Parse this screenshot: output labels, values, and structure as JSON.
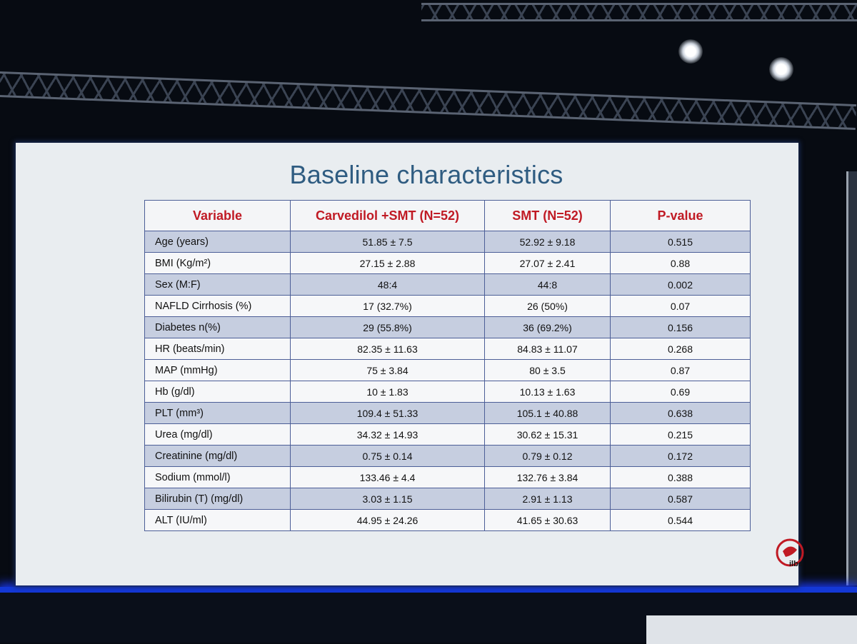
{
  "slide": {
    "title": "Baseline characteristics",
    "logo_text": "ilbs"
  },
  "table": {
    "headers": [
      "Variable",
      "Carvedilol +SMT (N=52)",
      "SMT (N=52)",
      "P-value"
    ],
    "rows": [
      {
        "variable": "Age (years)",
        "carvedilol_smt": "51.85 ± 7.5",
        "smt": "52.92 ± 9.18",
        "p_value": "0.515"
      },
      {
        "variable": "BMI (Kg/m²)",
        "carvedilol_smt": "27.15 ± 2.88",
        "smt": "27.07 ± 2.41",
        "p_value": "0.88"
      },
      {
        "variable": "Sex (M:F)",
        "carvedilol_smt": "48:4",
        "smt": "44:8",
        "p_value": "0.002"
      },
      {
        "variable": "NAFLD Cirrhosis (%)",
        "carvedilol_smt": "17 (32.7%)",
        "smt": "26 (50%)",
        "p_value": "0.07"
      },
      {
        "variable": "Diabetes n(%)",
        "carvedilol_smt": "29 (55.8%)",
        "smt": "36 (69.2%)",
        "p_value": "0.156"
      },
      {
        "variable": "HR (beats/min)",
        "carvedilol_smt": "82.35 ± 11.63",
        "smt": "84.83 ± 11.07",
        "p_value": "0.268"
      },
      {
        "variable": "MAP (mmHg)",
        "carvedilol_smt": "75 ± 3.84",
        "smt": "80 ± 3.5",
        "p_value": "0.87"
      },
      {
        "variable": "Hb (g/dl)",
        "carvedilol_smt": "10 ± 1.83",
        "smt": "10.13 ± 1.63",
        "p_value": "0.69"
      },
      {
        "variable": "PLT (mm³)",
        "carvedilol_smt": "109.4 ± 51.33",
        "smt": "105.1 ± 40.88",
        "p_value": "0.638"
      },
      {
        "variable": "Urea (mg/dl)",
        "carvedilol_smt": "34.32 ± 14.93",
        "smt": "30.62 ± 15.31",
        "p_value": "0.215"
      },
      {
        "variable": "Creatinine (mg/dl)",
        "carvedilol_smt": "0.75 ± 0.14",
        "smt": "0.79 ± 0.12",
        "p_value": "0.172"
      },
      {
        "variable": "Sodium (mmol/l)",
        "carvedilol_smt": "133.46 ± 4.4",
        "smt": "132.76 ± 3.84",
        "p_value": "0.388"
      },
      {
        "variable": "Bilirubin (T) (mg/dl)",
        "carvedilol_smt": "3.03 ± 1.15",
        "smt": "2.91 ± 1.13",
        "p_value": "0.587"
      },
      {
        "variable": "ALT (IU/ml)",
        "carvedilol_smt": "44.95 ± 24.26",
        "smt": "41.65 ± 30.63",
        "p_value": "0.544"
      }
    ]
  },
  "colors": {
    "title": "#2f5c81",
    "header_text": "#c01a24",
    "band_row": "#c6cee0",
    "border": "#4c5e97"
  }
}
